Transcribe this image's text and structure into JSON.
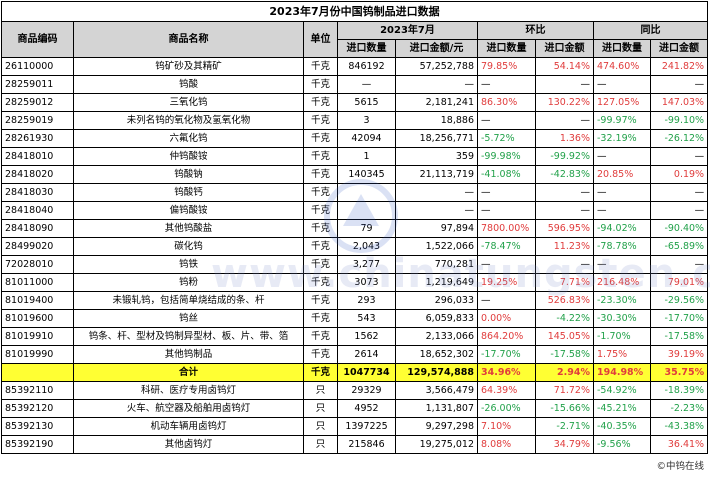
{
  "title": "2023年7月份中国钨制品进口数据",
  "headers": {
    "code": "商品编码",
    "name": "商品名称",
    "unit": "单位",
    "period": "2023年7月",
    "mom": "环比",
    "yoy": "同比",
    "qty": "进口数量",
    "amount": "进口金额/元",
    "mom_qty": "进口数量",
    "mom_amount": "进口金额",
    "yoy_qty": "进口数量",
    "yoy_amount": "进口金额"
  },
  "rows": [
    {
      "code": "26110000",
      "name": "钨矿砂及其精矿",
      "unit": "千克",
      "qty": "846192",
      "amount": "57,252,788",
      "mom_qty": "79.85%",
      "mom_amount": "54.14%",
      "yoy_qty": "474.60%",
      "yoy_amount": "241.82%"
    },
    {
      "code": "28259011",
      "name": "钨酸",
      "unit": "千克",
      "qty": "—",
      "amount": "—",
      "mom_qty": "—",
      "mom_amount": "—",
      "yoy_qty": "—",
      "yoy_amount": "—"
    },
    {
      "code": "28259012",
      "name": "三氧化钨",
      "unit": "千克",
      "qty": "5615",
      "amount": "2,181,241",
      "mom_qty": "86.30%",
      "mom_amount": "130.22%",
      "yoy_qty": "127.05%",
      "yoy_amount": "147.03%"
    },
    {
      "code": "28259019",
      "name": "未列名钨的氧化物及氢氧化物",
      "unit": "千克",
      "qty": "3",
      "amount": "18,886",
      "mom_qty": "—",
      "mom_amount": "—",
      "yoy_qty": "-99.97%",
      "yoy_amount": "-99.10%"
    },
    {
      "code": "28261930",
      "name": "六氟化钨",
      "unit": "千克",
      "qty": "42094",
      "amount": "18,256,771",
      "mom_qty": "-5.72%",
      "mom_amount": "1.36%",
      "yoy_qty": "-32.19%",
      "yoy_amount": "-26.12%"
    },
    {
      "code": "28418010",
      "name": "仲钨酸铵",
      "unit": "千克",
      "qty": "1",
      "amount": "359",
      "mom_qty": "-99.98%",
      "mom_amount": "-99.92%",
      "yoy_qty": "—",
      "yoy_amount": "—"
    },
    {
      "code": "28418020",
      "name": "钨酸钠",
      "unit": "千克",
      "qty": "140345",
      "amount": "21,113,719",
      "mom_qty": "-41.08%",
      "mom_amount": "-42.83%",
      "yoy_qty": "20.85%",
      "yoy_amount": "0.19%"
    },
    {
      "code": "28418030",
      "name": "钨酸钙",
      "unit": "千克",
      "qty": "",
      "amount": "—",
      "mom_qty": "—",
      "mom_amount": "—",
      "yoy_qty": "—",
      "yoy_amount": "—"
    },
    {
      "code": "28418040",
      "name": "偏钨酸铵",
      "unit": "千克",
      "qty": "",
      "amount": "—",
      "mom_qty": "—",
      "mom_amount": "—",
      "yoy_qty": "—",
      "yoy_amount": "—"
    },
    {
      "code": "28418090",
      "name": "其他钨酸盐",
      "unit": "千克",
      "qty": "79",
      "amount": "97,894",
      "mom_qty": "7800.00%",
      "mom_amount": "596.95%",
      "yoy_qty": "-94.02%",
      "yoy_amount": "-90.40%"
    },
    {
      "code": "28499020",
      "name": "碳化钨",
      "unit": "千克",
      "qty": "2,043",
      "amount": "1,522,066",
      "mom_qty": "-78.47%",
      "mom_amount": "11.23%",
      "yoy_qty": "-78.78%",
      "yoy_amount": "-65.89%"
    },
    {
      "code": "72028010",
      "name": "钨铁",
      "unit": "千克",
      "qty": "3,277",
      "amount": "770,281",
      "mom_qty": "—",
      "mom_amount": "—",
      "yoy_qty": "—",
      "yoy_amount": "—"
    },
    {
      "code": "81011000",
      "name": "钨粉",
      "unit": "千克",
      "qty": "3073",
      "amount": "1,219,649",
      "mom_qty": "19.25%",
      "mom_amount": "7.71%",
      "yoy_qty": "216.48%",
      "yoy_amount": "79.01%"
    },
    {
      "code": "81019400",
      "name": "未锻轧钨，包括简单烧结成的条、杆",
      "unit": "千克",
      "qty": "293",
      "amount": "296,033",
      "mom_qty": "—",
      "mom_amount": "526.83%",
      "yoy_qty": "-23.30%",
      "yoy_amount": "-29.56%"
    },
    {
      "code": "81019600",
      "name": "钨丝",
      "unit": "千克",
      "qty": "543",
      "amount": "6,059,833",
      "mom_qty": "0.00%",
      "mom_amount": "-4.22%",
      "yoy_qty": "-30.30%",
      "yoy_amount": "-17.70%"
    },
    {
      "code": "81019910",
      "name": "钨条、杆、型材及钨制异型材、板、片、带、箔",
      "unit": "千克",
      "qty": "1562",
      "amount": "2,133,066",
      "mom_qty": "864.20%",
      "mom_amount": "145.05%",
      "yoy_qty": "-1.70%",
      "yoy_amount": "-17.58%"
    },
    {
      "code": "81019990",
      "name": "其他钨制品",
      "unit": "千克",
      "qty": "2614",
      "amount": "18,652,302",
      "mom_qty": "-17.70%",
      "mom_amount": "-17.58%",
      "yoy_qty": "1.75%",
      "yoy_amount": "39.19%"
    }
  ],
  "total": {
    "name": "合计",
    "unit": "千克",
    "qty": "1047734",
    "amount": "129,574,888",
    "mom_qty": "34.96%",
    "mom_amount": "2.94%",
    "yoy_qty": "194.98%",
    "yoy_amount": "35.75%"
  },
  "lamp_rows": [
    {
      "code": "85392110",
      "name": "科研、医疗专用卤钨灯",
      "unit": "只",
      "qty": "29329",
      "amount": "3,566,479",
      "mom_qty": "64.39%",
      "mom_amount": "71.72%",
      "yoy_qty": "-54.92%",
      "yoy_amount": "-18.39%"
    },
    {
      "code": "85392120",
      "name": "火车、航空器及船舶用卤钨灯",
      "unit": "只",
      "qty": "4952",
      "amount": "1,131,807",
      "mom_qty": "-26.00%",
      "mom_amount": "-15.66%",
      "yoy_qty": "-45.21%",
      "yoy_amount": "-2.23%"
    },
    {
      "code": "85392130",
      "name": "机动车辆用卤钨灯",
      "unit": "只",
      "qty": "1397225",
      "amount": "9,297,298",
      "mom_qty": "7.10%",
      "mom_amount": "-2.71%",
      "yoy_qty": "-40.35%",
      "yoy_amount": "-43.38%"
    },
    {
      "code": "85392190",
      "name": "其他卤钨灯",
      "unit": "只",
      "qty": "215846",
      "amount": "19,275,012",
      "mom_qty": "8.08%",
      "mom_amount": "34.79%",
      "yoy_qty": "-9.56%",
      "yoy_amount": "36.41%"
    }
  ],
  "footer": "©中钨在线",
  "watermark": "www.chinatungsten.com",
  "colors": {
    "positive": "#e03c3c",
    "negative": "#22a14a",
    "total_bg": "#ffff33",
    "header_bg": "#d4d4d4"
  }
}
